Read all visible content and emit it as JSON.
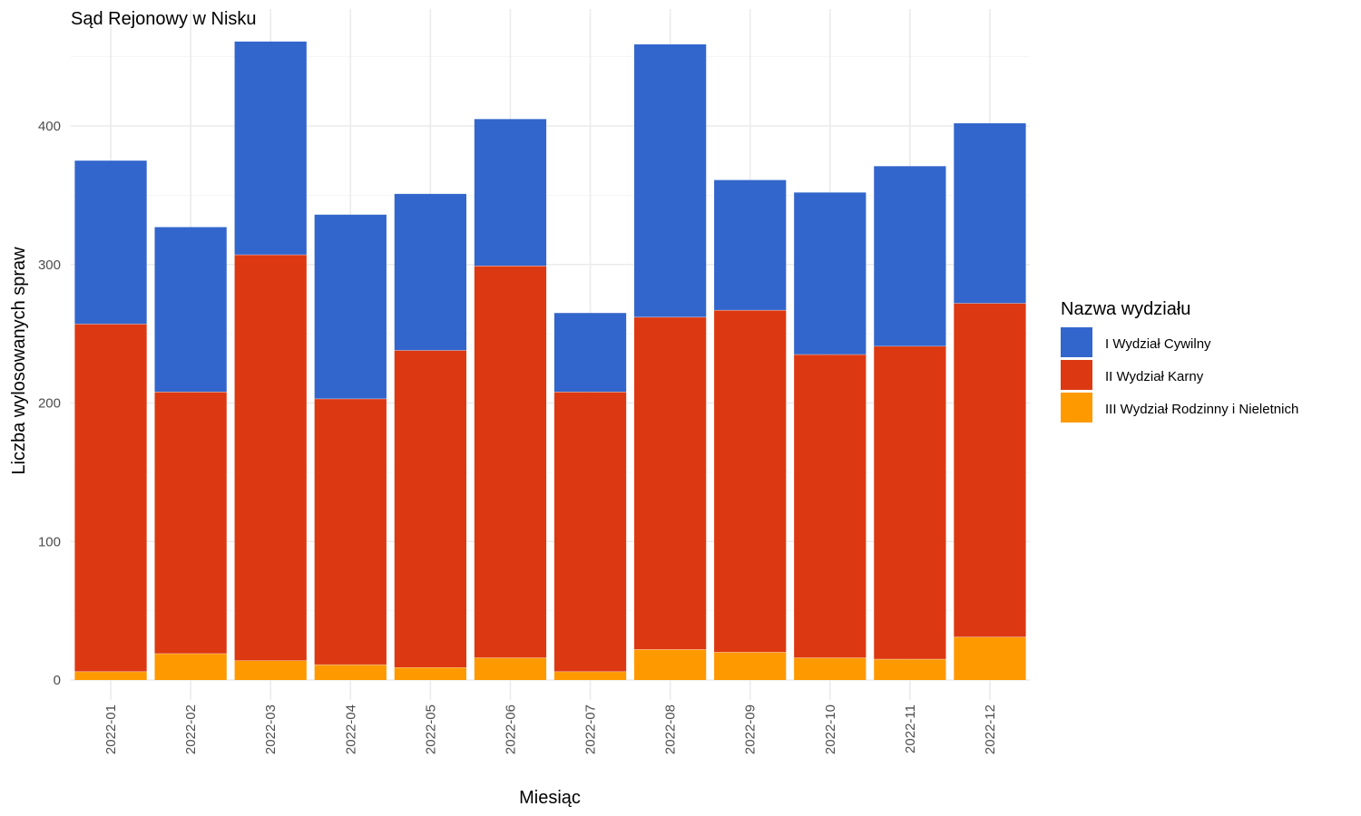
{
  "chart_data": {
    "type": "bar",
    "stacked": true,
    "title": "Sąd Rejonowy w Nisku",
    "xlabel": "Miesiąc",
    "ylabel": "Liczba wylosowanych spraw",
    "categories": [
      "2022-01",
      "2022-02",
      "2022-03",
      "2022-04",
      "2022-05",
      "2022-06",
      "2022-07",
      "2022-08",
      "2022-09",
      "2022-10",
      "2022-11",
      "2022-12"
    ],
    "series": [
      {
        "name": "III Wydział Rodzinny i Nieletnich",
        "color": "#FF9900",
        "values": [
          6,
          19,
          14,
          11,
          9,
          16,
          6,
          22,
          20,
          16,
          15,
          31
        ]
      },
      {
        "name": "II Wydział Karny",
        "color": "#DC3912",
        "values": [
          251,
          189,
          293,
          192,
          229,
          283,
          202,
          240,
          247,
          219,
          226,
          241
        ]
      },
      {
        "name": "I Wydział Cywilny",
        "color": "#3366CC",
        "values": [
          118,
          119,
          154,
          133,
          113,
          106,
          57,
          197,
          94,
          117,
          130,
          130
        ]
      }
    ],
    "ylim": [
      0,
      475
    ],
    "yticks": [
      0,
      100,
      200,
      300,
      400
    ],
    "grid": true,
    "legend": {
      "title": "Nazwa wydziału",
      "position": "right",
      "entries": [
        "I Wydział Cywilny",
        "II Wydział Karny",
        "III Wydział Rodzinny i Nieletnich"
      ]
    }
  }
}
